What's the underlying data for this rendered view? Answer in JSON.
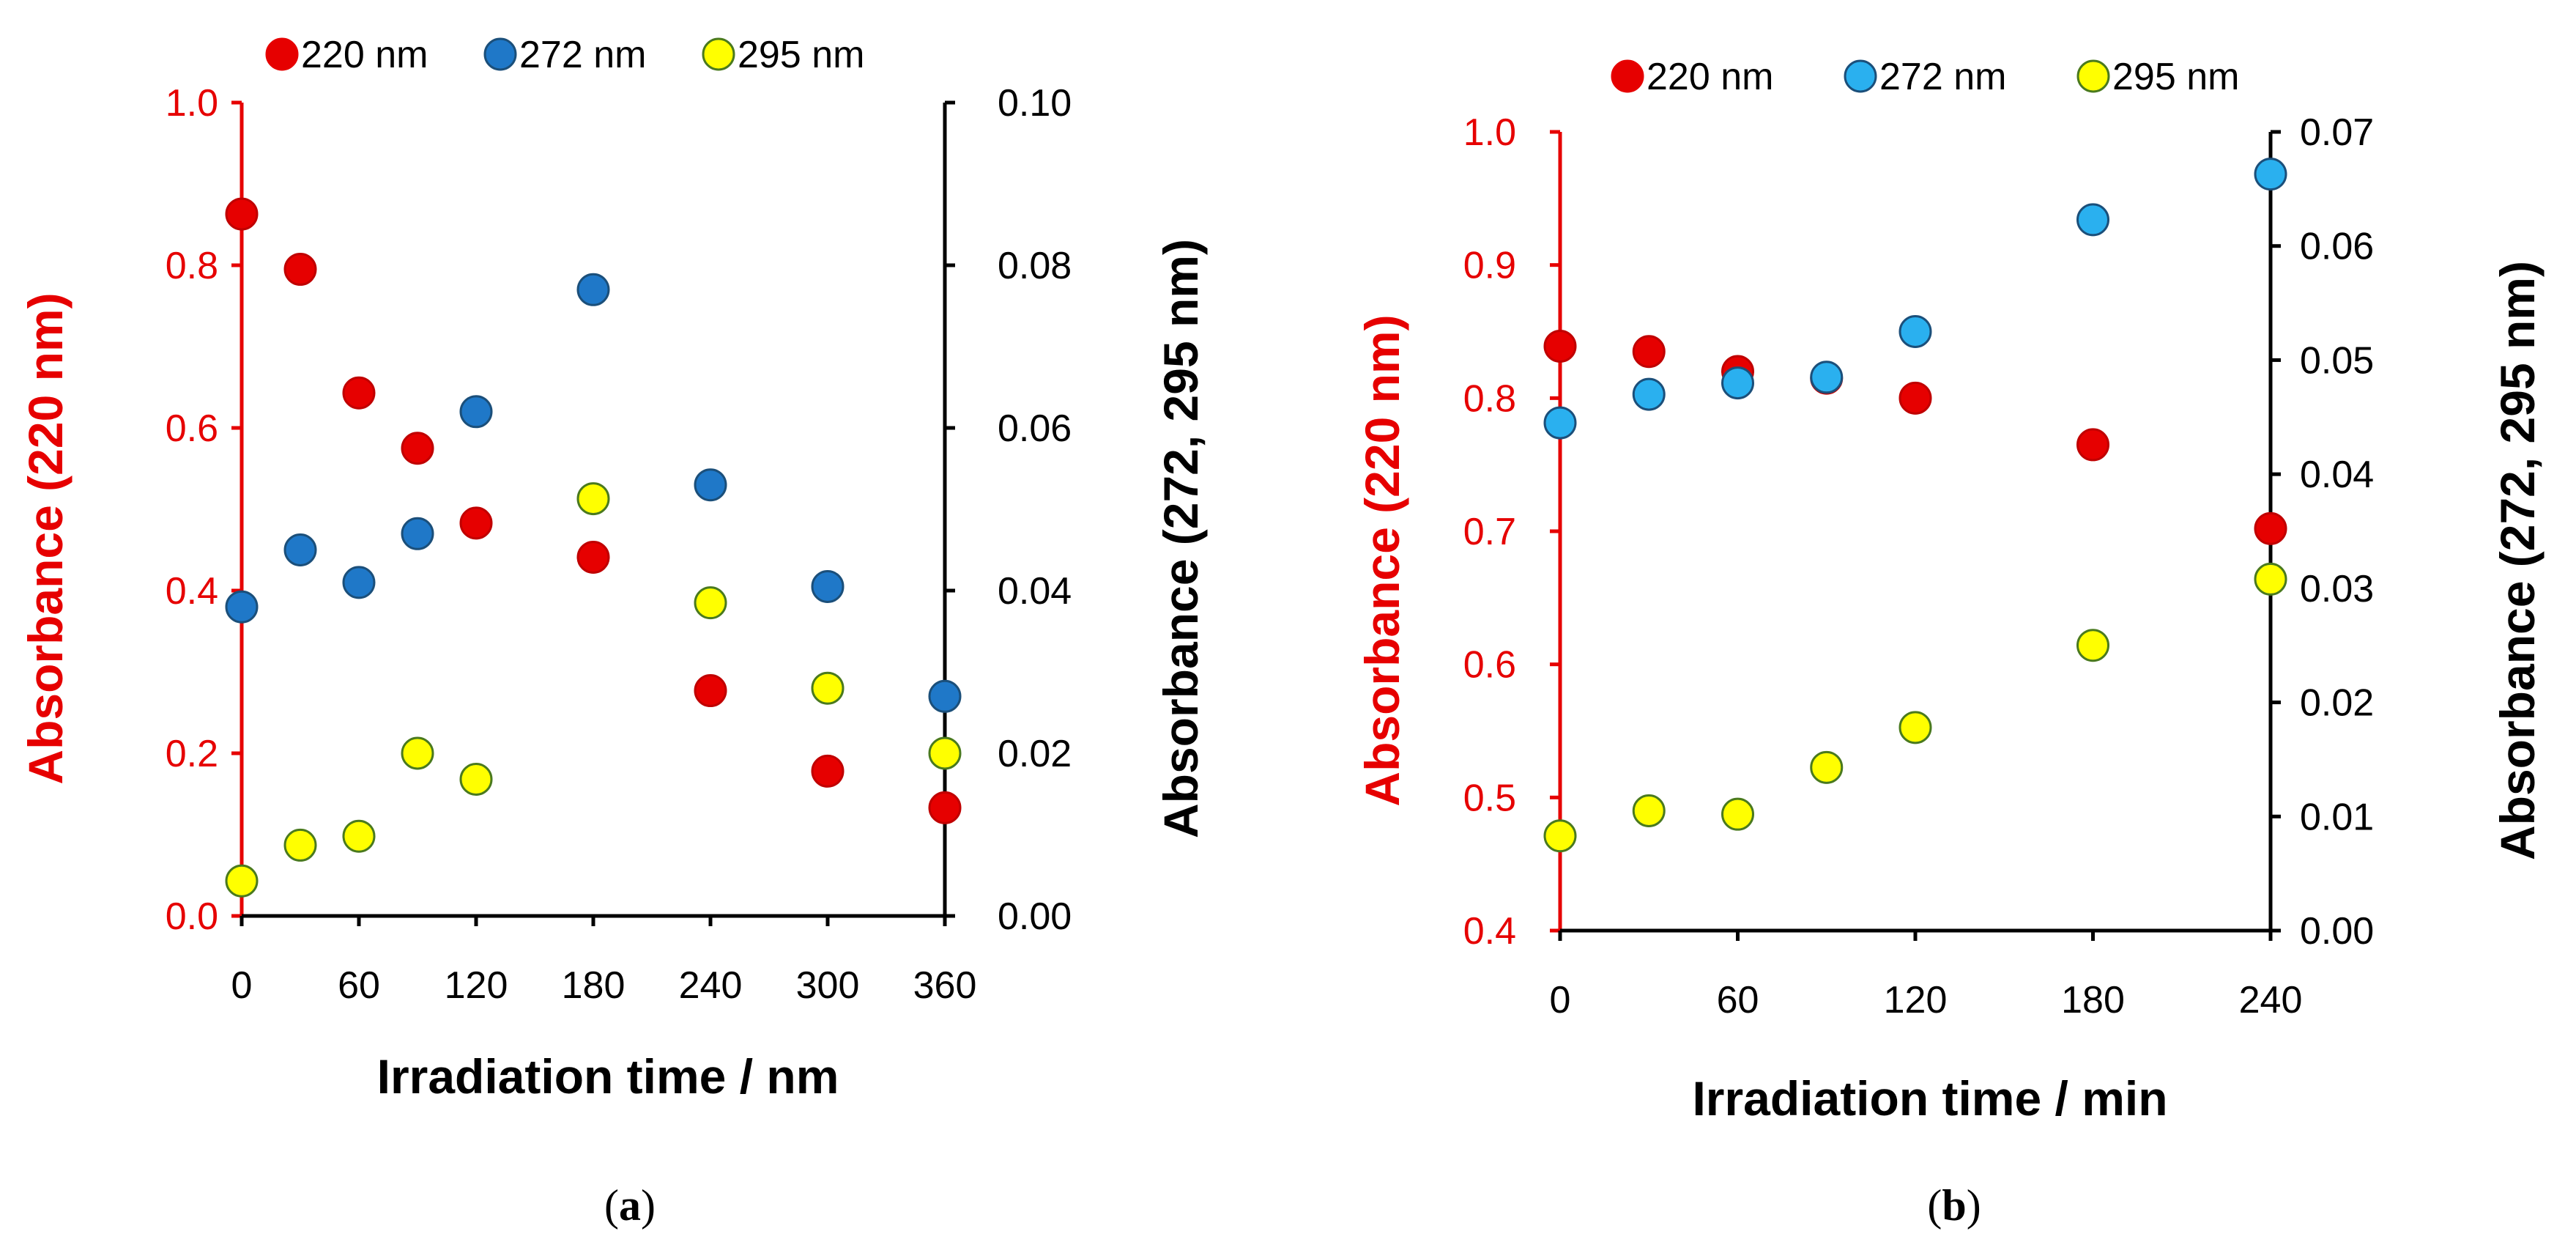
{
  "chart_data": [
    {
      "type": "scatter",
      "panel_label": "(a)",
      "panel_letter": "a",
      "xlabel": "Irradiation time / nm",
      "ylabel_left": "Absorbance  (220 nm)",
      "ylabel_right": "Absorbance  (272, 295 nm)",
      "xlim": [
        0,
        360
      ],
      "x_ticks": [
        "0",
        "60",
        "120",
        "180",
        "240",
        "300",
        "360"
      ],
      "y_left_lim": [
        0.0,
        1.0
      ],
      "y_left_ticks": [
        "0.0",
        "0.2",
        "0.4",
        "0.6",
        "0.8",
        "1.0"
      ],
      "y_right_lim": [
        0.0,
        0.1
      ],
      "y_right_ticks": [
        "0.00",
        "0.02",
        "0.04",
        "0.06",
        "0.08",
        "0.10"
      ],
      "legend": [
        "220 nm",
        "272 nm",
        "295 nm"
      ],
      "series": [
        {
          "name": "220 nm",
          "axis": "left",
          "color": "#e60000",
          "x": [
            0,
            30,
            60,
            90,
            120,
            180,
            240,
            300,
            360
          ],
          "y": [
            0.863,
            0.795,
            0.643,
            0.575,
            0.483,
            0.441,
            0.277,
            0.178,
            0.133
          ]
        },
        {
          "name": "272 nm",
          "axis": "right",
          "color": "#1f78c8",
          "x": [
            0,
            30,
            60,
            90,
            120,
            180,
            240,
            300,
            360
          ],
          "y": [
            0.038,
            0.045,
            0.041,
            0.047,
            0.062,
            0.077,
            0.053,
            0.0405,
            0.027
          ]
        },
        {
          "name": "295 nm",
          "axis": "right",
          "color": "#ffff00",
          "x": [
            0,
            30,
            60,
            90,
            120,
            180,
            240,
            300,
            360
          ],
          "y": [
            0.0043,
            0.0087,
            0.0098,
            0.02,
            0.0168,
            0.0513,
            0.0385,
            0.028,
            0.02
          ]
        }
      ]
    },
    {
      "type": "scatter",
      "panel_label": "(b)",
      "panel_letter": "b",
      "xlabel": "Irradiation time / min",
      "ylabel_left": "Absorbance  (220 nm)",
      "ylabel_right": "Absorbance   (272, 295 nm)",
      "xlim": [
        0,
        240
      ],
      "x_ticks": [
        "0",
        "60",
        "120",
        "180",
        "240"
      ],
      "y_left_lim": [
        0.4,
        1.0
      ],
      "y_left_ticks": [
        "0.4",
        "0.5",
        "0.6",
        "0.7",
        "0.8",
        "0.9",
        "1.0"
      ],
      "y_right_lim": [
        0.0,
        0.07
      ],
      "y_right_ticks": [
        "0.00",
        "0.01",
        "0.02",
        "0.03",
        "0.04",
        "0.05",
        "0.06",
        "0.07"
      ],
      "legend": [
        "220 nm",
        "272 nm",
        "295 nm"
      ],
      "series": [
        {
          "name": "220 nm",
          "axis": "left",
          "color": "#e60000",
          "x": [
            0,
            30,
            60,
            90,
            120,
            180,
            240
          ],
          "y": [
            0.839,
            0.835,
            0.82,
            0.815,
            0.8,
            0.765,
            0.702
          ]
        },
        {
          "name": "272 nm",
          "axis": "right",
          "color": "#2ab0ef",
          "x": [
            0,
            30,
            60,
            90,
            120,
            180,
            240
          ],
          "y": [
            0.0445,
            0.047,
            0.048,
            0.0485,
            0.0525,
            0.0623,
            0.0663
          ]
        },
        {
          "name": "295 nm",
          "axis": "right",
          "color": "#ffff00",
          "x": [
            0,
            30,
            60,
            90,
            120,
            180,
            240
          ],
          "y": [
            0.0083,
            0.0105,
            0.0102,
            0.0143,
            0.0178,
            0.025,
            0.0308
          ]
        }
      ]
    }
  ]
}
